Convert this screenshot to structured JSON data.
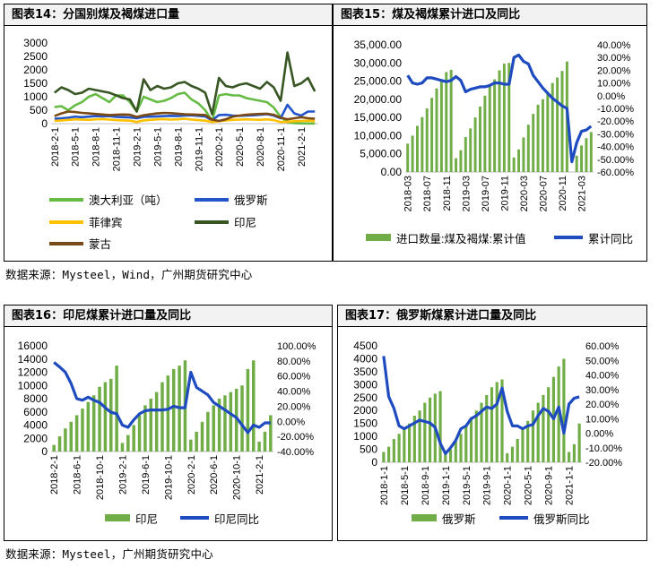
{
  "colors": {
    "bar_green": "#70ad47",
    "line_blue": "#1f4bc0",
    "aus_green": "#66bb44",
    "rus_blue": "#2255cc",
    "phl_yellow": "#ffc000",
    "idn_darkgreen": "#375623",
    "mng_brown": "#7b4a14"
  },
  "sources": {
    "top": "数据来源：Mysteel，Wind，广州期货研究中心",
    "bottom": "数据来源：Mysteel，广州期货研究中心"
  },
  "chart_data": [
    {
      "id": "fig14",
      "type": "line",
      "title": "图表14：分国别煤及褐煤进口量",
      "ylim": [
        0,
        3000
      ],
      "yticks": [
        "0",
        "500",
        "1000",
        "1500",
        "2000",
        "2500",
        "3000"
      ],
      "xtick_labels": [
        "2018-2-1",
        "2018-5-1",
        "2018-8-1",
        "2018-11-1",
        "2019-2-1",
        "2019-5-1",
        "2019-8-1",
        "2019-11-1",
        "2020-2-1",
        "2020-5-1",
        "2020-8-1",
        "2020-11-1",
        "2021-2-1"
      ],
      "series": [
        {
          "name": "澳大利亚（吨）",
          "color": "#66bb44",
          "values": [
            620,
            650,
            500,
            680,
            800,
            1000,
            1100,
            950,
            800,
            1050,
            1050,
            800,
            450,
            1000,
            900,
            800,
            850,
            950,
            1100,
            1150,
            900,
            750,
            500,
            100,
            1050,
            1100,
            1050,
            1050,
            950,
            900,
            850,
            800,
            600,
            250,
            50,
            20,
            10,
            5,
            0
          ]
        },
        {
          "name": "俄罗斯",
          "color": "#2255cc",
          "values": [
            180,
            200,
            220,
            260,
            240,
            260,
            280,
            270,
            280,
            250,
            240,
            230,
            200,
            250,
            260,
            270,
            280,
            290,
            280,
            300,
            310,
            290,
            270,
            120,
            320,
            330,
            300,
            290,
            300,
            310,
            330,
            350,
            300,
            200,
            700,
            380,
            300,
            450,
            450
          ]
        },
        {
          "name": "菲律宾",
          "color": "#ffc000",
          "values": [
            100,
            120,
            140,
            160,
            150,
            140,
            160,
            170,
            150,
            130,
            120,
            110,
            60,
            120,
            140,
            160,
            170,
            150,
            160,
            180,
            150,
            130,
            110,
            60,
            90,
            120,
            140,
            150,
            160,
            150,
            140,
            160,
            130,
            60,
            70,
            90,
            100,
            110,
            90
          ]
        },
        {
          "name": "印尼",
          "color": "#375623",
          "values": [
            1150,
            1350,
            1250,
            1100,
            1150,
            1300,
            1250,
            1200,
            1150,
            1050,
            950,
            900,
            450,
            1650,
            1250,
            1400,
            1300,
            1350,
            1500,
            1550,
            1400,
            1300,
            1150,
            350,
            1700,
            1400,
            1350,
            1450,
            1500,
            1400,
            1300,
            1550,
            1350,
            850,
            2650,
            1400,
            1500,
            1700,
            1200
          ]
        },
        {
          "name": "蒙古",
          "color": "#7b4a14",
          "values": [
            280,
            380,
            450,
            430,
            400,
            380,
            360,
            340,
            320,
            330,
            340,
            330,
            250,
            310,
            350,
            380,
            400,
            390,
            370,
            350,
            340,
            330,
            320,
            150,
            100,
            160,
            260,
            300,
            330,
            350,
            360,
            370,
            330,
            220,
            160,
            200,
            240,
            200,
            180
          ]
        }
      ]
    },
    {
      "id": "fig15",
      "type": "bar",
      "title": "图表15：煤及褐煤累计进口及同比",
      "ylim": [
        0,
        35000
      ],
      "yticks": [
        "0.00",
        "5,000.00",
        "10,000.00",
        "15,000.00",
        "20,000.00",
        "25,000.00",
        "30,000.00",
        "35,000.00"
      ],
      "y2lim": [
        -60,
        40
      ],
      "y2ticks": [
        "-60.00%",
        "-50.00%",
        "-40.00%",
        "-30.00%",
        "-20.00%",
        "-10.00%",
        "0.00%",
        "10.00%",
        "20.00%",
        "30.00%",
        "40.00%"
      ],
      "xtick_labels": [
        "2018-03",
        "2018-07",
        "2018-11",
        "2019-03",
        "2019-07",
        "2019-11",
        "2020-03",
        "2020-07",
        "2020-11",
        "2021-03"
      ],
      "series": [
        {
          "name": "进口数量:煤及褐煤:累计值",
          "kind": "bar",
          "axis": "left",
          "values": [
            7800,
            10000,
            12700,
            15100,
            17500,
            20400,
            23000,
            25300,
            27500,
            28100,
            3800,
            6000,
            9600,
            12000,
            15000,
            18000,
            21000,
            23500,
            25500,
            28000,
            29800,
            30000,
            4000,
            6200,
            9500,
            13000,
            16000,
            18500,
            20000,
            22000,
            24500,
            26000,
            27800,
            30400,
            0,
            4500,
            7300,
            9300,
            11000
          ]
        },
        {
          "name": "累计同比",
          "kind": "line",
          "axis": "right",
          "values": [
            16,
            10,
            9,
            10,
            14,
            14,
            13,
            12,
            11,
            12,
            15,
            12,
            3,
            5,
            6,
            7,
            7,
            8,
            10,
            10,
            9,
            9,
            30,
            32,
            27,
            25,
            16,
            11,
            6,
            2,
            -2,
            -5,
            -8,
            -10,
            -52,
            -37,
            -28,
            -27,
            -24
          ]
        }
      ]
    },
    {
      "id": "fig16",
      "type": "bar",
      "title": "图表16：印尼煤累计进口量及同比",
      "ylim": [
        0,
        16000
      ],
      "yticks": [
        "0",
        "2000",
        "4000",
        "6000",
        "8000",
        "10000",
        "12000",
        "14000",
        "16000"
      ],
      "y2lim": [
        -40,
        100
      ],
      "y2ticks": [
        "-40.00%",
        "-20.00%",
        "0.00%",
        "20.00%",
        "40.00%",
        "60.00%",
        "80.00%",
        "100.00%"
      ],
      "xtick_labels": [
        "2018-2-1",
        "2018-6-1",
        "2018-10-1",
        "2019-2-1",
        "2019-6-1",
        "2019-10-1",
        "2020-2-1",
        "2020-6-1",
        "2020-10-1",
        "2021-2-1"
      ],
      "series": [
        {
          "name": "印尼",
          "kind": "bar",
          "axis": "left",
          "values": [
            1000,
            2300,
            3500,
            4500,
            5500,
            6500,
            7500,
            8500,
            9800,
            10500,
            11000,
            13000,
            1300,
            2500,
            4000,
            5500,
            7000,
            8000,
            9000,
            10500,
            11500,
            12500,
            13000,
            13800,
            1800,
            3000,
            4500,
            6000,
            7000,
            8000,
            8500,
            9000,
            9500,
            10000,
            12500,
            13800,
            1500,
            3000,
            5500
          ]
        },
        {
          "name": "印尼同比",
          "kind": "line",
          "axis": "right",
          "values": [
            78,
            72,
            65,
            50,
            30,
            28,
            32,
            28,
            25,
            18,
            12,
            10,
            -5,
            -8,
            2,
            10,
            14,
            15,
            15,
            15,
            16,
            20,
            18,
            18,
            65,
            45,
            40,
            35,
            25,
            20,
            15,
            10,
            5,
            -5,
            -15,
            -5,
            -8,
            -2,
            -2
          ]
        }
      ]
    },
    {
      "id": "fig17",
      "type": "bar",
      "title": "图表17：俄罗斯煤累计进口量及同比",
      "ylim": [
        0,
        4500
      ],
      "yticks": [
        "0",
        "500",
        "1000",
        "1500",
        "2000",
        "2500",
        "3000",
        "3500",
        "4000",
        "4500"
      ],
      "y2lim": [
        -20,
        60
      ],
      "y2ticks": [
        "-20.00%",
        "-10.00%",
        "0.00%",
        "10.00%",
        "20.00%",
        "30.00%",
        "40.00%",
        "50.00%",
        "60.00%"
      ],
      "xtick_labels": [
        "2018-1-1",
        "2018-5-1",
        "2018-9-1",
        "2019-1-1",
        "2019-5-1",
        "2019-9-1",
        "2020-1-1",
        "2020-5-1",
        "2020-9-1",
        "2021-1-1"
      ],
      "series": [
        {
          "name": "俄罗斯",
          "kind": "bar",
          "axis": "left",
          "values": [
            400,
            600,
            900,
            1100,
            1300,
            1500,
            1800,
            2000,
            2300,
            2500,
            2650,
            2750,
            300,
            500,
            800,
            1100,
            1400,
            1700,
            2000,
            2300,
            2600,
            2900,
            3100,
            3200,
            350,
            600,
            900,
            1300,
            1600,
            2000,
            2300,
            2600,
            2900,
            3300,
            3700,
            4000,
            400,
            700,
            1500
          ]
        },
        {
          "name": "俄罗斯同比",
          "kind": "line",
          "axis": "right",
          "values": [
            53,
            25,
            17,
            5,
            3,
            5,
            7,
            9,
            8,
            7,
            4,
            -7,
            -14,
            -10,
            -5,
            3,
            5,
            10,
            12,
            15,
            18,
            17,
            20,
            31,
            15,
            5,
            5,
            3,
            5,
            6,
            12,
            17,
            15,
            10,
            18,
            0,
            20,
            24,
            25
          ]
        }
      ]
    }
  ]
}
